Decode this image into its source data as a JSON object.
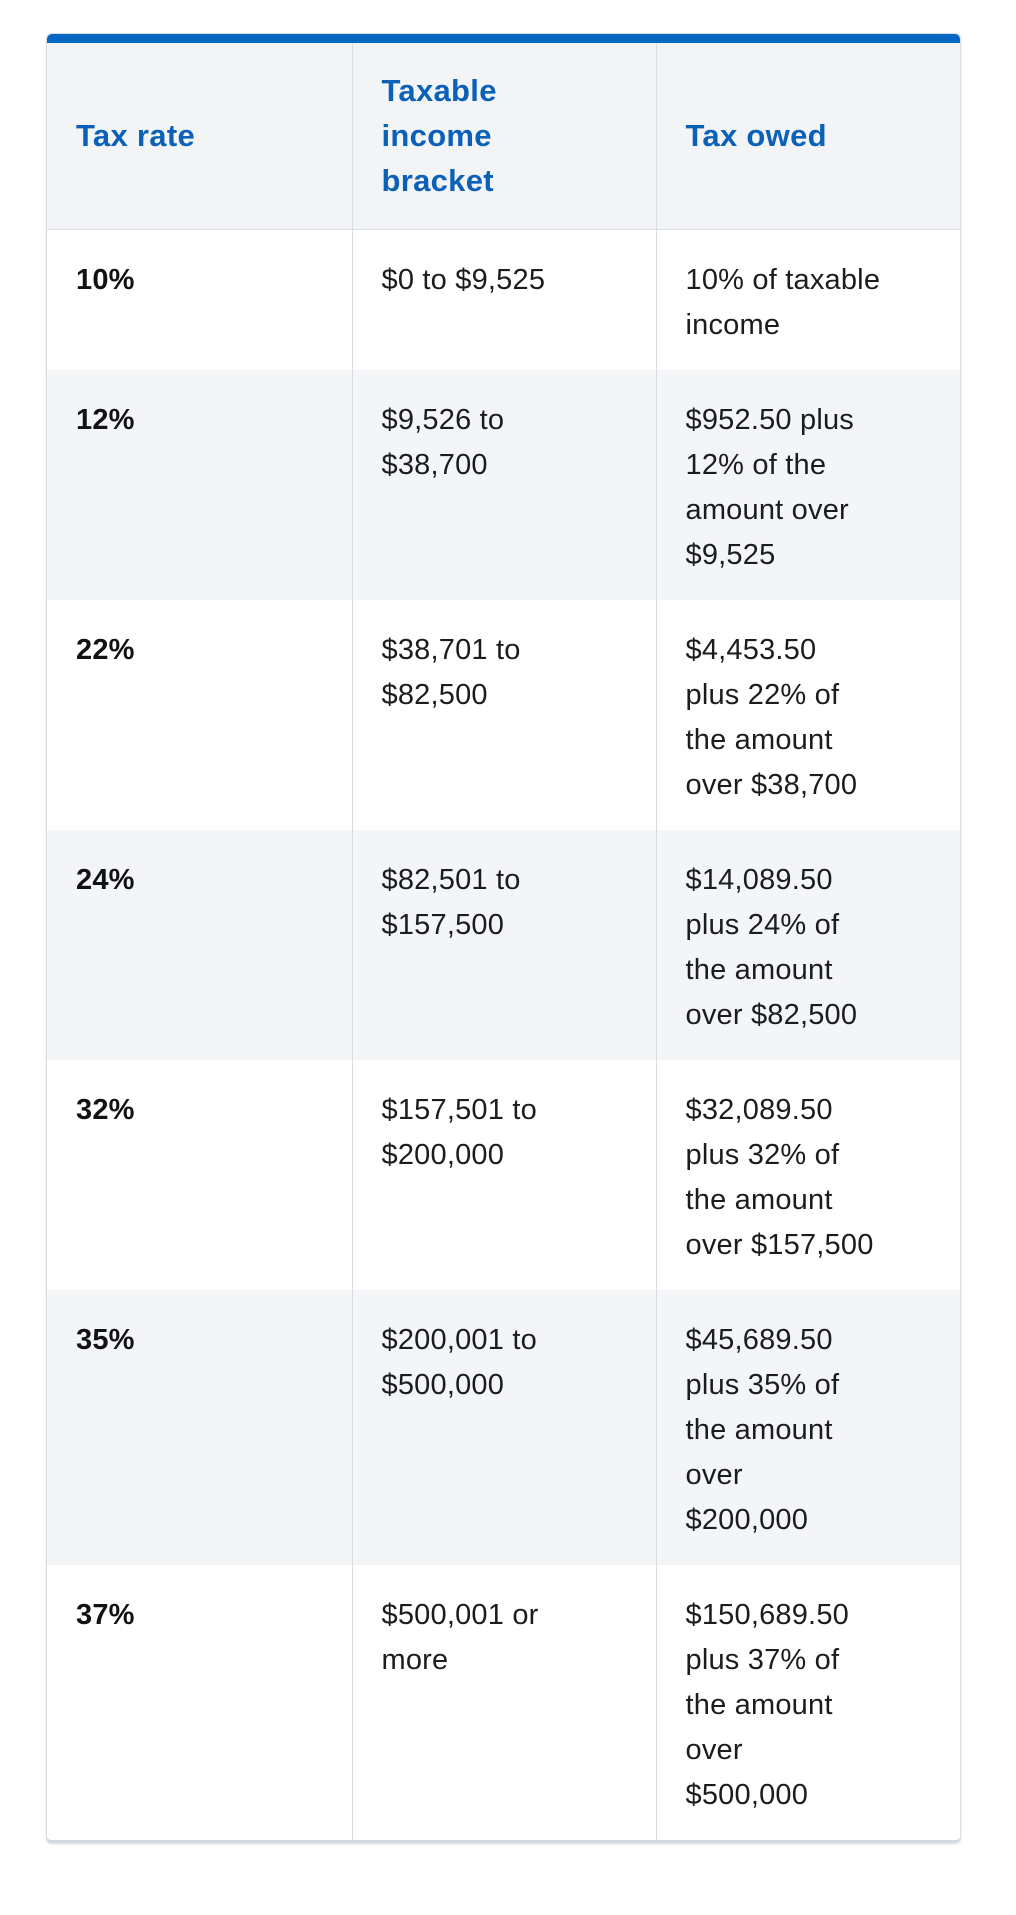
{
  "colors": {
    "accent_bar_blue": "#0767c2",
    "header_text_blue": "#0b61b8",
    "header_background": "#f3f4f6",
    "row_stripe_background": "#f4f5f7",
    "cell_border": "#d9dde2",
    "outer_border": "#d9dee3",
    "body_text": "#1a1c1e"
  },
  "chart_data": {
    "type": "table",
    "columns": [
      "Tax rate",
      "Taxable income bracket",
      "Tax owed"
    ],
    "rows": [
      [
        "10%",
        "$0 to $9,525",
        "10% of taxable\nincome"
      ],
      [
        "12%",
        "$9,526 to\n$38,700",
        "$952.50 plus\n12% of the\namount over\n$9,525"
      ],
      [
        "22%",
        "$38,701 to\n$82,500",
        "$4,453.50\nplus 22% of\nthe amount\nover $38,700"
      ],
      [
        "24%",
        "$82,501 to\n$157,500",
        "$14,089.50\nplus 24% of\nthe amount\nover $82,500"
      ],
      [
        "32%",
        "$157,501 to\n$200,000",
        "$32,089.50\nplus 32% of\nthe amount\nover $157,500"
      ],
      [
        "35%",
        "$200,001 to\n$500,000",
        "$45,689.50\nplus 35% of\nthe amount\nover\n$200,000"
      ],
      [
        "37%",
        "$500,001 or\nmore",
        "$150,689.50\nplus 37% of\nthe amount\nover\n$500,000"
      ]
    ],
    "layout": {
      "striped": true,
      "striped_rows": "even",
      "header_accent_bar": true,
      "column_count": 3,
      "equal_column_widths": true
    }
  },
  "table_meta": {
    "cell_names": [
      "cell-tax-rate",
      "cell-income-bracket",
      "cell-tax-owed"
    ]
  }
}
